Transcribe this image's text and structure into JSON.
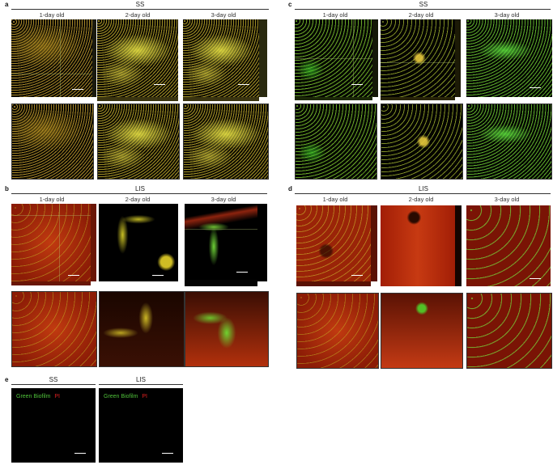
{
  "panels": [
    {
      "id": "a",
      "label": "a",
      "group": "SS",
      "columns": [
        "1-day old",
        "2-day old",
        "3-day old"
      ]
    },
    {
      "id": "b",
      "label": "b",
      "group": "LIS",
      "columns": [
        "1-day old",
        "2-day old",
        "3-day old"
      ]
    },
    {
      "id": "c",
      "label": "c",
      "group": "SS",
      "columns": [
        "1-day old",
        "2-day old",
        "3-day old"
      ]
    },
    {
      "id": "d",
      "label": "d",
      "group": "LIS",
      "columns": [
        "1-day old",
        "2-day old",
        "3-day old"
      ]
    }
  ],
  "panel_e": {
    "label": "e",
    "subpanels": [
      {
        "group": "SS",
        "legend_green": "Green Biofilm",
        "legend_red": "PI"
      },
      {
        "group": "LIS",
        "legend_green": "Green Biofilm",
        "legend_red": "PI"
      }
    ]
  },
  "colors": {
    "green_stain": "#4fc13a",
    "pi_stain": "#e02020"
  }
}
